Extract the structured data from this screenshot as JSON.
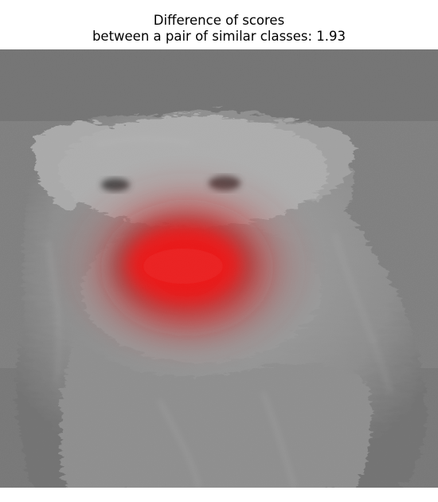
{
  "figure": {
    "title_line1": "Difference of scores",
    "title_line2": "between a pair of similar classes: 1.93"
  },
  "image": {
    "subject": "grayscale photo of a shaggy small dog facing the camera",
    "overlay": "red saliency heatmap centered on the dog's muzzle"
  },
  "colors": {
    "background": "#ffffff",
    "photo_mid_gray": "#8a8a8a",
    "heatmap": "#ff0000"
  }
}
